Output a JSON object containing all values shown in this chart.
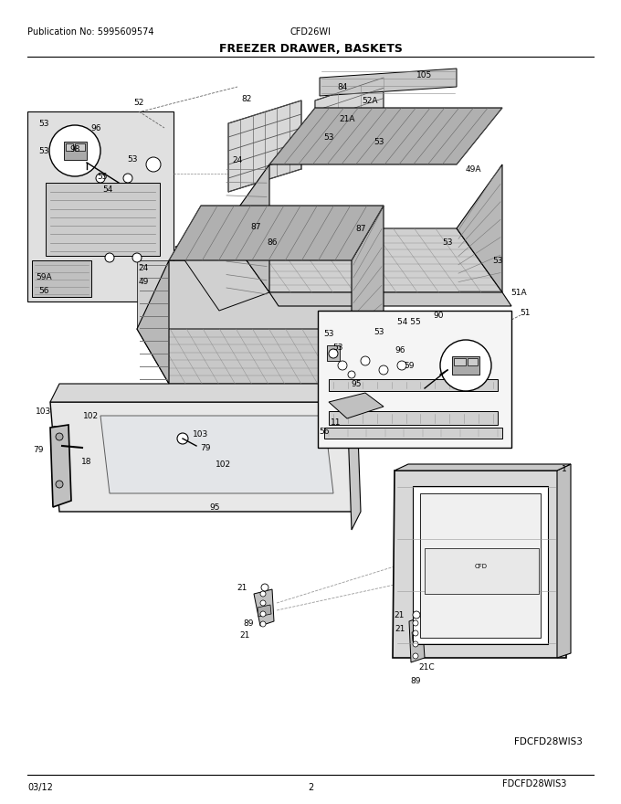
{
  "pub_no_text": "Publication No: 5995609574",
  "model_text": "CFD26WI",
  "title": "FREEZER DRAWER, BASKETS",
  "footer_left": "03/12",
  "footer_center": "2",
  "footer_right": "FDCFD28WIS3",
  "bg_color": "#ffffff",
  "line_color": "#000000",
  "gray_fill": "#d0d0d0",
  "dark_gray": "#555555",
  "mid_gray": "#888888",
  "light_gray": "#e8e8e8",
  "title_fontsize": 9,
  "header_fontsize": 7,
  "label_fontsize": 6.5,
  "lw_main": 1.0,
  "lw_thin": 0.5,
  "lw_med": 0.7
}
